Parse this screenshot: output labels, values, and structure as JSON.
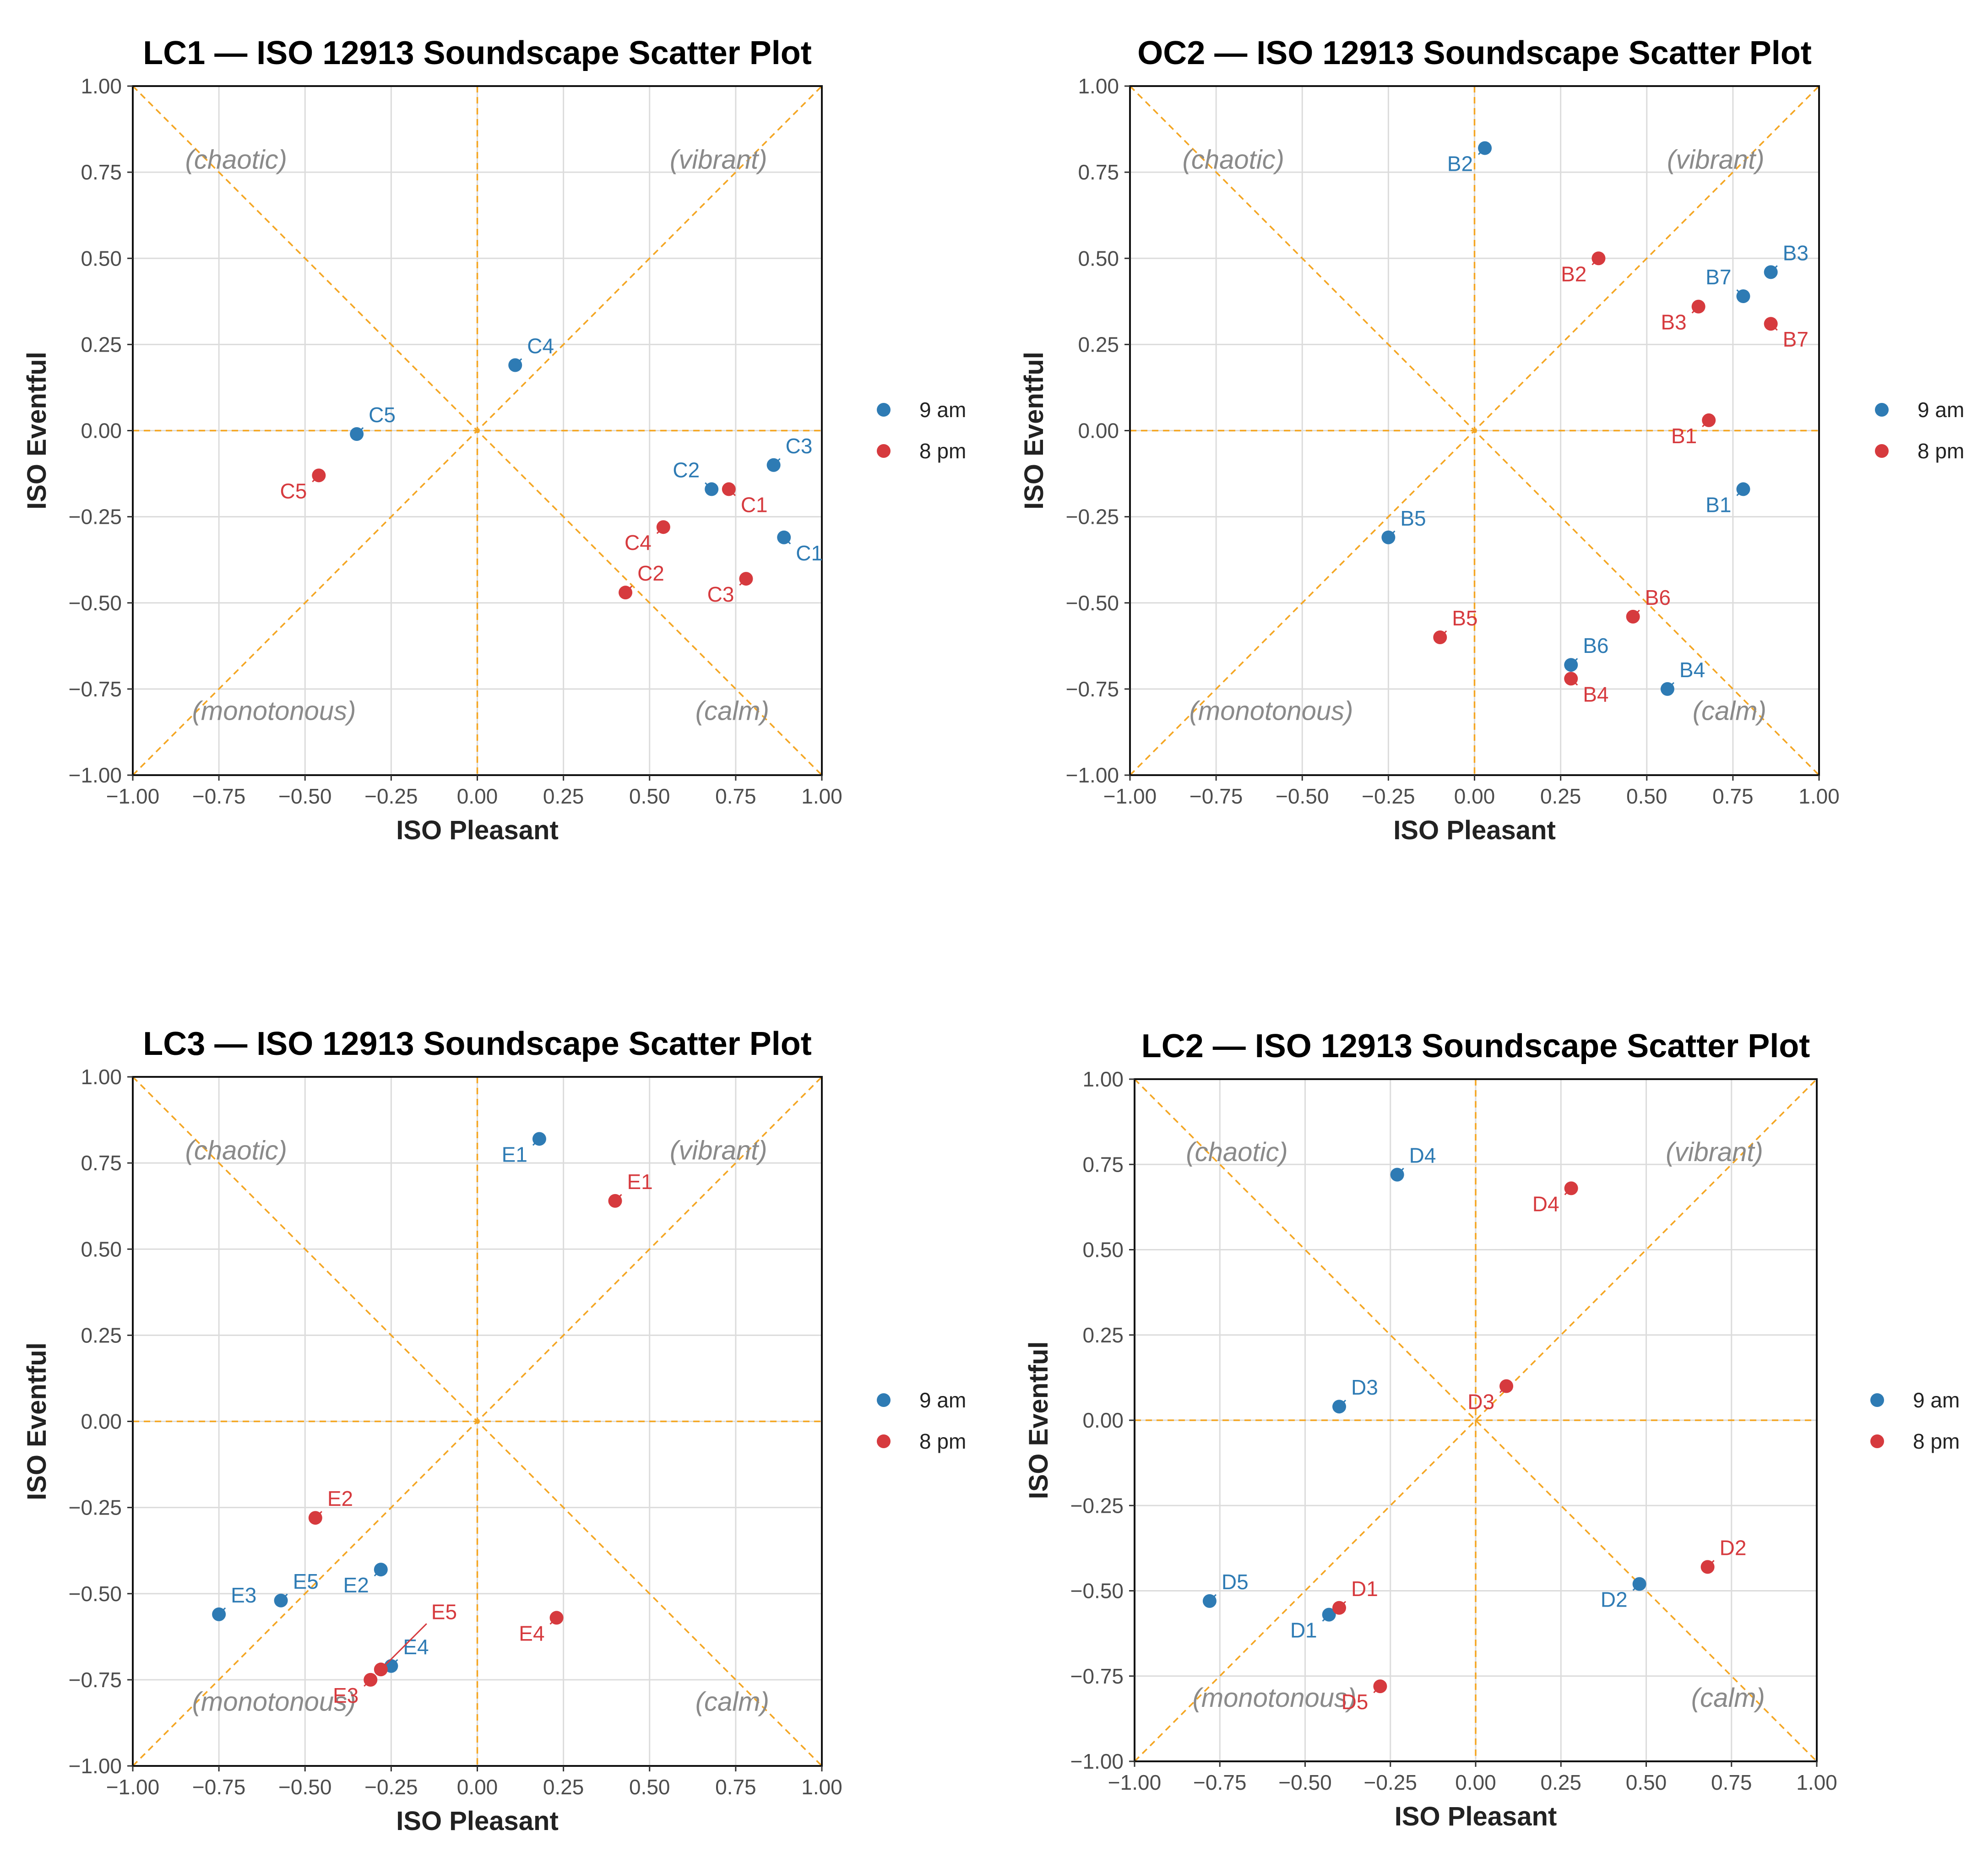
{
  "colors": {
    "am": "#2e7bb4",
    "pm": "#d63a3e",
    "guide": "#f4a623",
    "grid": "#dcdcdc",
    "annotation": "#8a8a8a",
    "axis_text": "#4d4d4d",
    "title": "#000000"
  },
  "legend": {
    "am_label": "9 am",
    "pm_label": "8 pm"
  },
  "chart_data": [
    {
      "id": "lc1",
      "type": "scatter",
      "title": "LC1 — ISO 12913 Soundscape Scatter Plot",
      "xlabel": "ISO Pleasant",
      "ylabel": "ISO Eventful",
      "xlim": [
        -1,
        1
      ],
      "ylim": [
        -1,
        1
      ],
      "ticks": [
        "−1.00",
        "−0.75",
        "−0.50",
        "−0.25",
        "0.00",
        "0.25",
        "0.50",
        "0.75",
        "1.00"
      ],
      "tick_values": [
        -1,
        -0.75,
        -0.5,
        -0.25,
        0,
        0.25,
        0.5,
        0.75,
        1
      ],
      "annotations": {
        "chaotic": "(chaotic)",
        "vibrant": "(vibrant)",
        "monotonous": "(monotonous)",
        "calm": "(calm)"
      },
      "series": [
        {
          "name": "9 am",
          "key": "am",
          "points": [
            {
              "label": "C1",
              "x": 0.89,
              "y": -0.31,
              "dir": "br"
            },
            {
              "label": "C2",
              "x": 0.68,
              "y": -0.17,
              "dir": "tl"
            },
            {
              "label": "C3",
              "x": 0.86,
              "y": -0.1,
              "dir": "tr"
            },
            {
              "label": "C4",
              "x": 0.11,
              "y": 0.19,
              "dir": "tr"
            },
            {
              "label": "C5",
              "x": -0.35,
              "y": -0.01,
              "dir": "tr"
            }
          ]
        },
        {
          "name": "8 pm",
          "key": "pm",
          "points": [
            {
              "label": "C1",
              "x": 0.73,
              "y": -0.17,
              "dir": "br"
            },
            {
              "label": "C2",
              "x": 0.43,
              "y": -0.47,
              "dir": "tr"
            },
            {
              "label": "C3",
              "x": 0.78,
              "y": -0.43,
              "dir": "bl"
            },
            {
              "label": "C4",
              "x": 0.54,
              "y": -0.28,
              "dir": "bl"
            },
            {
              "label": "C5",
              "x": -0.46,
              "y": -0.13,
              "dir": "bl"
            }
          ]
        }
      ]
    },
    {
      "id": "oc2",
      "type": "scatter",
      "title": "OC2 — ISO 12913 Soundscape Scatter Plot",
      "xlabel": "ISO Pleasant",
      "ylabel": "ISO Eventful",
      "xlim": [
        -1,
        1
      ],
      "ylim": [
        -1,
        1
      ],
      "ticks": [
        "−1.00",
        "−0.75",
        "−0.50",
        "−0.25",
        "0.00",
        "0.25",
        "0.50",
        "0.75",
        "1.00"
      ],
      "tick_values": [
        -1,
        -0.75,
        -0.5,
        -0.25,
        0,
        0.25,
        0.5,
        0.75,
        1
      ],
      "annotations": {
        "chaotic": "(chaotic)",
        "vibrant": "(vibrant)",
        "monotonous": "(monotonous)",
        "calm": "(calm)"
      },
      "series": [
        {
          "name": "9 am",
          "key": "am",
          "points": [
            {
              "label": "B1",
              "x": 0.78,
              "y": -0.17,
              "dir": "bl"
            },
            {
              "label": "B2",
              "x": 0.03,
              "y": 0.82,
              "dir": "bl"
            },
            {
              "label": "B3",
              "x": 0.86,
              "y": 0.46,
              "dir": "tr"
            },
            {
              "label": "B4",
              "x": 0.56,
              "y": -0.75,
              "dir": "tr"
            },
            {
              "label": "B5",
              "x": -0.25,
              "y": -0.31,
              "dir": "tr"
            },
            {
              "label": "B6",
              "x": 0.28,
              "y": -0.68,
              "dir": "tr"
            },
            {
              "label": "B7",
              "x": 0.78,
              "y": 0.39,
              "dir": "tl"
            }
          ]
        },
        {
          "name": "8 pm",
          "key": "pm",
          "points": [
            {
              "label": "B1",
              "x": 0.68,
              "y": 0.03,
              "dir": "bl"
            },
            {
              "label": "B2",
              "x": 0.36,
              "y": 0.5,
              "dir": "bl"
            },
            {
              "label": "B3",
              "x": 0.65,
              "y": 0.36,
              "dir": "bl"
            },
            {
              "label": "B4",
              "x": 0.28,
              "y": -0.72,
              "dir": "br"
            },
            {
              "label": "B5",
              "x": -0.1,
              "y": -0.6,
              "dir": "tr"
            },
            {
              "label": "B6",
              "x": 0.46,
              "y": -0.54,
              "dir": "tr"
            },
            {
              "label": "B7",
              "x": 0.86,
              "y": 0.31,
              "dir": "br"
            }
          ]
        }
      ]
    },
    {
      "id": "lc3",
      "type": "scatter",
      "title": "LC3 — ISO 12913 Soundscape Scatter Plot",
      "xlabel": "ISO Pleasant",
      "ylabel": "ISO Eventful",
      "xlim": [
        -1,
        1
      ],
      "ylim": [
        -1,
        1
      ],
      "ticks": [
        "−1.00",
        "−0.75",
        "−0.50",
        "−0.25",
        "0.00",
        "0.25",
        "0.50",
        "0.75",
        "1.00"
      ],
      "tick_values": [
        -1,
        -0.75,
        -0.5,
        -0.25,
        0,
        0.25,
        0.5,
        0.75,
        1
      ],
      "annotations": {
        "chaotic": "(chaotic)",
        "vibrant": "(vibrant)",
        "monotonous": "(monotonous)",
        "calm": "(calm)"
      },
      "series": [
        {
          "name": "9 am",
          "key": "am",
          "points": [
            {
              "label": "E1",
              "x": 0.18,
              "y": 0.82,
              "dir": "bl"
            },
            {
              "label": "E2",
              "x": -0.28,
              "y": -0.43,
              "dir": "bl"
            },
            {
              "label": "E3",
              "x": -0.75,
              "y": -0.56,
              "dir": "tr"
            },
            {
              "label": "E4",
              "x": -0.25,
              "y": -0.71,
              "dir": "tr"
            },
            {
              "label": "E5",
              "x": -0.57,
              "y": -0.52,
              "dir": "tr"
            }
          ]
        },
        {
          "name": "8 pm",
          "key": "pm",
          "points": [
            {
              "label": "E1",
              "x": 0.4,
              "y": 0.64,
              "dir": "tr"
            },
            {
              "label": "E2",
              "x": -0.47,
              "y": -0.28,
              "dir": "tr"
            },
            {
              "label": "E3",
              "x": -0.31,
              "y": -0.75,
              "dir": "bl"
            },
            {
              "label": "E4",
              "x": 0.23,
              "y": -0.57,
              "dir": "bl"
            },
            {
              "label": "E5",
              "x": -0.28,
              "y": -0.72,
              "dir": "far"
            }
          ]
        }
      ]
    },
    {
      "id": "lc2",
      "type": "scatter",
      "title": "LC2 — ISO 12913 Soundscape Scatter Plot",
      "xlabel": "ISO Pleasant",
      "ylabel": "ISO Eventful",
      "xlim": [
        -1,
        1
      ],
      "ylim": [
        -1,
        1
      ],
      "ticks": [
        "−1.00",
        "−0.75",
        "−0.50",
        "−0.25",
        "0.00",
        "0.25",
        "0.50",
        "0.75",
        "1.00"
      ],
      "tick_values": [
        -1,
        -0.75,
        -0.5,
        -0.25,
        0,
        0.25,
        0.5,
        0.75,
        1
      ],
      "annotations": {
        "chaotic": "(chaotic)",
        "vibrant": "(vibrant)",
        "monotonous": "(monotonous)",
        "calm": "(calm)"
      },
      "series": [
        {
          "name": "9 am",
          "key": "am",
          "points": [
            {
              "label": "D1",
              "x": -0.43,
              "y": -0.57,
              "dir": "bl"
            },
            {
              "label": "D2",
              "x": 0.48,
              "y": -0.48,
              "dir": "bl"
            },
            {
              "label": "D3",
              "x": -0.4,
              "y": 0.04,
              "dir": "tr"
            },
            {
              "label": "D4",
              "x": -0.23,
              "y": 0.72,
              "dir": "tr"
            },
            {
              "label": "D5",
              "x": -0.78,
              "y": -0.53,
              "dir": "tr"
            }
          ]
        },
        {
          "name": "8 pm",
          "key": "pm",
          "points": [
            {
              "label": "D1",
              "x": -0.4,
              "y": -0.55,
              "dir": "tr"
            },
            {
              "label": "D2",
              "x": 0.68,
              "y": -0.43,
              "dir": "tr"
            },
            {
              "label": "D3",
              "x": 0.09,
              "y": 0.1,
              "dir": "bl"
            },
            {
              "label": "D4",
              "x": 0.28,
              "y": 0.68,
              "dir": "bl"
            },
            {
              "label": "D5",
              "x": -0.28,
              "y": -0.78,
              "dir": "bl"
            }
          ]
        }
      ]
    }
  ]
}
